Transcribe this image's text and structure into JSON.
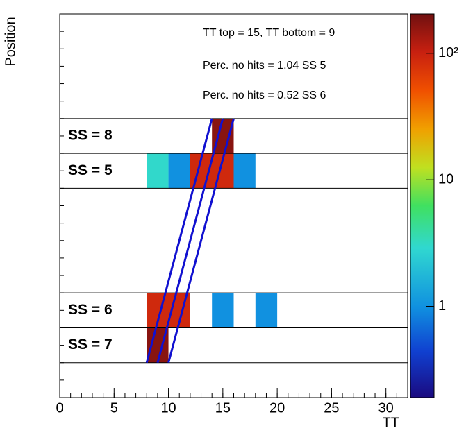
{
  "chart_data": {
    "type": "heatmap",
    "x_label": "TT",
    "y_label": "Position",
    "xlim": [
      0,
      32
    ],
    "xticks": [
      0,
      5,
      10,
      15,
      20,
      25,
      30
    ],
    "xminor_step": 1,
    "ylim": [
      0,
      11
    ],
    "zlim": [
      0.19,
      205
    ],
    "zlog": true,
    "zticks": [
      1,
      10,
      {
        "value": 100,
        "label": "10²"
      }
    ],
    "annotations": [
      "TT top = 15, TT bottom = 9",
      "Perc. no hits = 1.04 SS 5",
      "Perc. no hits = 0.52 SS 6"
    ],
    "separators": [
      1,
      2,
      3,
      6,
      7,
      8
    ],
    "row_labels": [
      {
        "label": "SS = 8",
        "y": 7
      },
      {
        "label": "SS = 5",
        "y": 6
      },
      {
        "label": "SS = 6",
        "y": 2
      },
      {
        "label": "SS = 7",
        "y": 1
      }
    ],
    "cells": [
      {
        "x0": 14,
        "x1": 16,
        "y0": 7,
        "y1": 8,
        "value": 170
      },
      {
        "x0": 8,
        "x1": 10,
        "y0": 6,
        "y1": 7,
        "value": 3
      },
      {
        "x0": 10,
        "x1": 12,
        "y0": 6,
        "y1": 7,
        "value": 1
      },
      {
        "x0": 12,
        "x1": 16,
        "y0": 6,
        "y1": 7,
        "value": 90
      },
      {
        "x0": 16,
        "x1": 18,
        "y0": 6,
        "y1": 7,
        "value": 1
      },
      {
        "x0": 8,
        "x1": 12,
        "y0": 2,
        "y1": 3,
        "value": 90
      },
      {
        "x0": 14,
        "x1": 16,
        "y0": 2,
        "y1": 3,
        "value": 1
      },
      {
        "x0": 18,
        "x1": 20,
        "y0": 2,
        "y1": 3,
        "value": 1
      },
      {
        "x0": 8,
        "x1": 10,
        "y0": 1,
        "y1": 2,
        "value": 170
      }
    ],
    "tracks": [
      [
        8,
        1,
        14,
        8
      ],
      [
        9,
        1,
        15,
        8
      ],
      [
        10,
        1,
        16,
        8
      ]
    ],
    "track_color": "#1010d0"
  }
}
